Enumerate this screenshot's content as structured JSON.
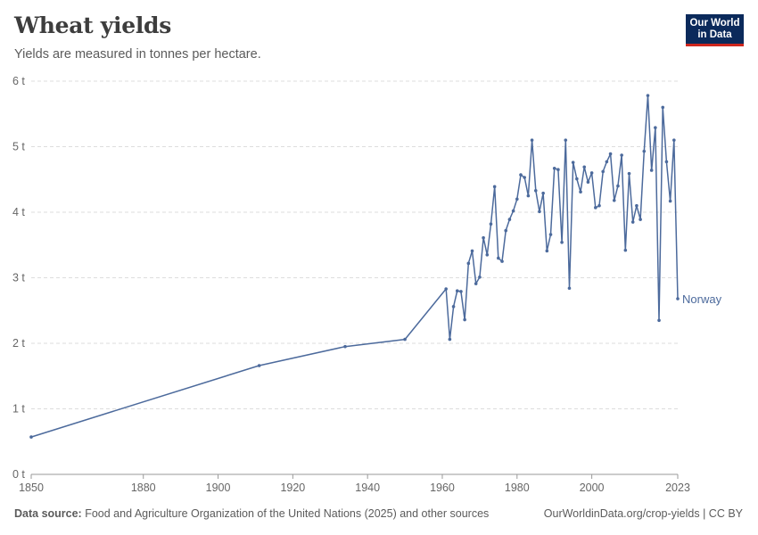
{
  "header": {
    "title": "Wheat yields",
    "subtitle": "Yields are measured in tonnes per hectare."
  },
  "logo": {
    "line1": "Our World",
    "line2": "in Data"
  },
  "footer": {
    "source_label": "Data source:",
    "source_text": "Food and Agriculture Organization of the United Nations (2025) and other sources",
    "url": "OurWorldinData.org/crop-yields | CC BY"
  },
  "colors": {
    "series": "#4c6a9c",
    "grid": "#dddddd",
    "text": "#666666"
  },
  "chart_data": {
    "type": "line",
    "title": "Wheat yields",
    "subtitle": "Yields are measured in tonnes per hectare.",
    "xlim": [
      1850,
      2023
    ],
    "ylim": [
      0,
      6
    ],
    "x_ticks": [
      "1850",
      "1880",
      "1900",
      "1920",
      "1940",
      "1960",
      "1980",
      "2000",
      "2023"
    ],
    "x_tick_values": [
      1850,
      1880,
      1900,
      1920,
      1940,
      1960,
      1980,
      2000,
      2023
    ],
    "y_ticks": [
      "0 t",
      "1 t",
      "2 t",
      "3 t",
      "4 t",
      "5 t",
      "6 t"
    ],
    "y_tick_values": [
      0,
      1,
      2,
      3,
      4,
      5,
      6
    ],
    "grid": "horizontal dashed",
    "series": [
      {
        "name": "Norway",
        "x": [
          1850,
          1911,
          1934,
          1950,
          1961,
          1962,
          1963,
          1964,
          1965,
          1966,
          1967,
          1968,
          1969,
          1970,
          1971,
          1972,
          1973,
          1974,
          1975,
          1976,
          1977,
          1978,
          1979,
          1980,
          1981,
          1982,
          1983,
          1984,
          1985,
          1986,
          1987,
          1988,
          1989,
          1990,
          1991,
          1992,
          1993,
          1994,
          1995,
          1996,
          1997,
          1998,
          1999,
          2000,
          2001,
          2002,
          2003,
          2004,
          2005,
          2006,
          2007,
          2008,
          2009,
          2010,
          2011,
          2012,
          2013,
          2014,
          2015,
          2016,
          2017,
          2018,
          2019,
          2020,
          2021,
          2022,
          2023
        ],
        "y": [
          0.57,
          1.66,
          1.95,
          2.06,
          2.83,
          2.06,
          2.56,
          2.8,
          2.79,
          2.36,
          3.22,
          3.41,
          2.91,
          3.01,
          3.61,
          3.35,
          3.82,
          4.39,
          3.3,
          3.25,
          3.72,
          3.89,
          4.02,
          4.2,
          4.57,
          4.53,
          4.25,
          5.1,
          4.33,
          4.01,
          4.29,
          3.41,
          3.66,
          4.67,
          4.65,
          3.54,
          5.1,
          2.84,
          4.76,
          4.51,
          4.31,
          4.69,
          4.46,
          4.6,
          4.07,
          4.1,
          4.62,
          4.77,
          4.89,
          4.18,
          4.4,
          4.87,
          3.42,
          4.59,
          3.85,
          4.1,
          3.89,
          4.93,
          5.78,
          4.64,
          5.29,
          2.35,
          5.6,
          4.77,
          4.17,
          5.1,
          2.68
        ]
      }
    ]
  }
}
